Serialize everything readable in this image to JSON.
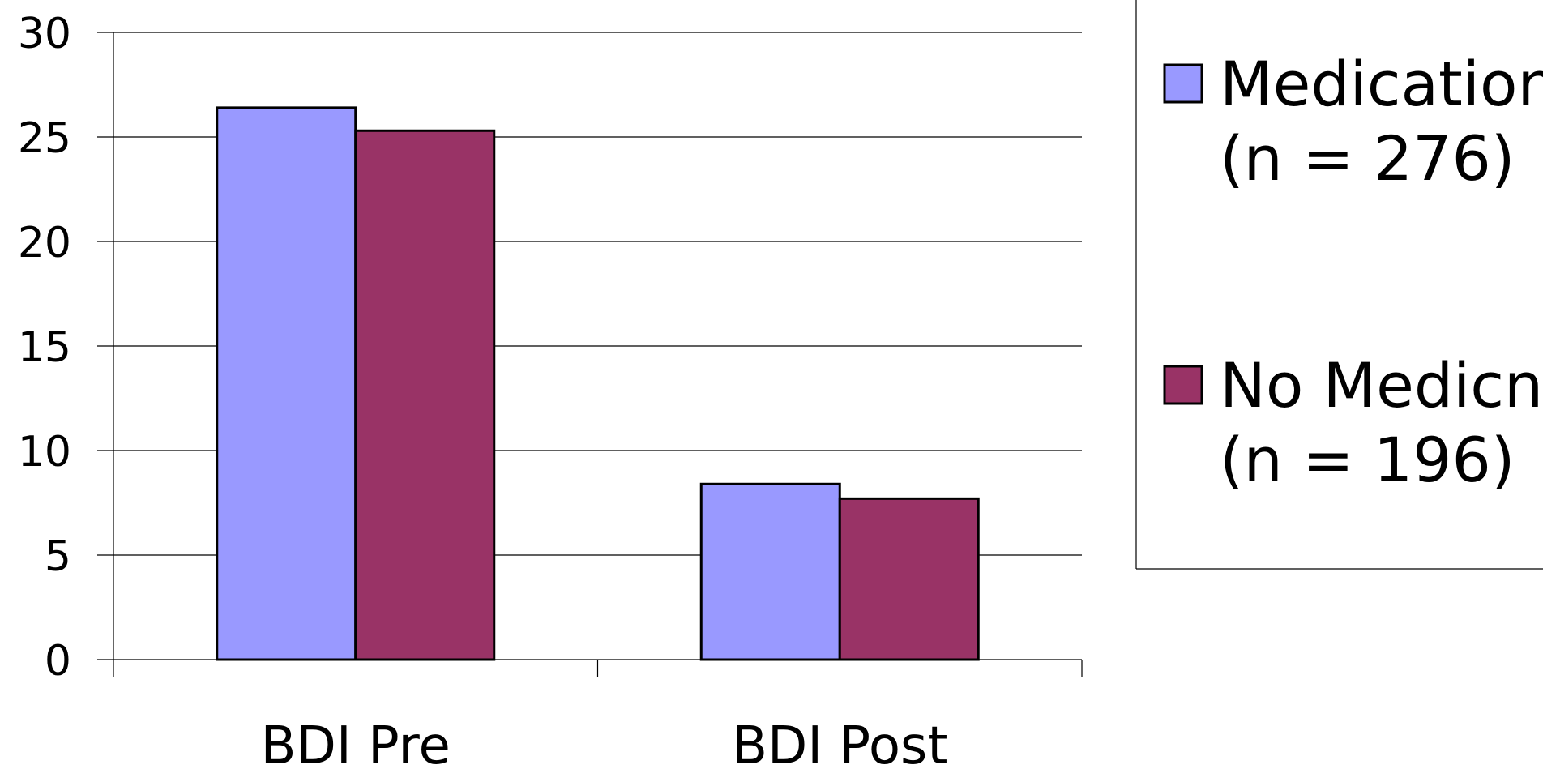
{
  "chart_data": {
    "type": "bar",
    "categories": [
      "BDI Pre",
      "BDI Post"
    ],
    "series": [
      {
        "name_lines": [
          "Medication",
          "(n = 276)"
        ],
        "values": [
          26.4,
          8.4
        ],
        "color": "#9999ff"
      },
      {
        "name_lines": [
          "No Medicn",
          "(n = 196)"
        ],
        "values": [
          25.3,
          7.7
        ],
        "color": "#993366"
      }
    ],
    "ylim": [
      0,
      30
    ],
    "yticks": [
      "0",
      "5",
      "10",
      "15",
      "20",
      "25",
      "30"
    ],
    "grid": true,
    "legend_position": "right",
    "title": "",
    "xlabel": "",
    "ylabel": ""
  }
}
